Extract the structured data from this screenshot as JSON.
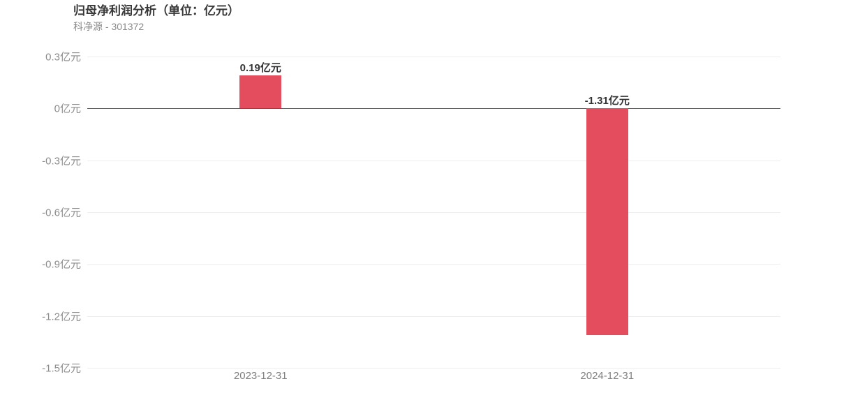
{
  "header": {
    "title": "归母净利润分析（单位：亿元）",
    "subtitle": "科净源 - 301372"
  },
  "chart_data": {
    "type": "bar",
    "title": "归母净利润分析（单位：亿元）",
    "subtitle": "科净源 - 301372",
    "unit": "亿元",
    "categories": [
      "2023-12-31",
      "2024-12-31"
    ],
    "values": [
      0.19,
      -1.31
    ],
    "value_labels": [
      "0.19亿元",
      "-1.31亿元"
    ],
    "xlabel": "",
    "ylabel": "",
    "ylim": [
      -1.5,
      0.3
    ],
    "ytick_step": 0.3,
    "ytick_values": [
      0.3,
      0,
      -0.3,
      -0.6,
      -0.9,
      -1.2,
      -1.5
    ],
    "ytick_labels": [
      "0.3亿元",
      "0亿元",
      "-0.3亿元",
      "-0.6亿元",
      "-0.9亿元",
      "-1.2亿元",
      "-1.5亿元"
    ],
    "grid": true,
    "legend": false,
    "legend_position": "none",
    "bar_color": "#e44d5e",
    "zero_line_color": "#595959",
    "grid_color": "#eeeeee",
    "title_color": "#383838",
    "subtitle_color": "#8a8a8a",
    "axis_label_color": "#8c8c8c",
    "xtick_color": "#808080",
    "value_label_color": "#333333"
  }
}
